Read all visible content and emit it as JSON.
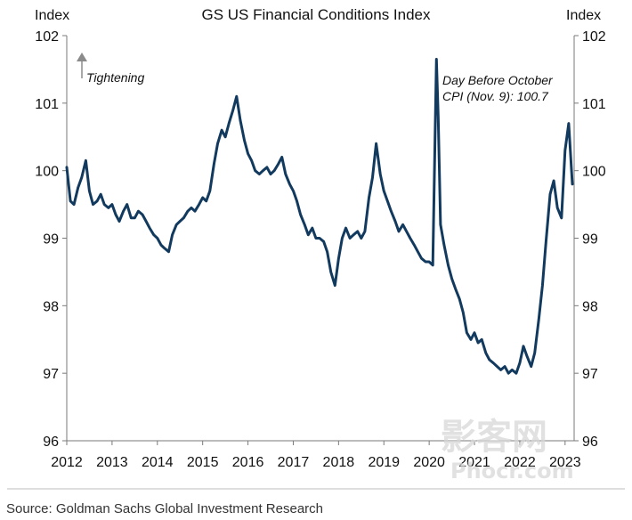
{
  "chart_data": {
    "type": "line",
    "title": "GS US Financial Conditions Index",
    "y_left_label": "Index",
    "y_right_label": "Index",
    "ylim": [
      96,
      102
    ],
    "y_ticks": [
      "96",
      "97",
      "98",
      "99",
      "100",
      "101",
      "102"
    ],
    "x_ticks": [
      "2012",
      "2013",
      "2014",
      "2015",
      "2016",
      "2017",
      "2018",
      "2019",
      "2020",
      "2021",
      "2022",
      "2023"
    ],
    "series": [
      {
        "color": "#123a5e",
        "x": [
          2012.0,
          2012.08,
          2012.16,
          2012.25,
          2012.33,
          2012.42,
          2012.5,
          2012.58,
          2012.67,
          2012.75,
          2012.83,
          2012.92,
          2013.0,
          2013.08,
          2013.16,
          2013.25,
          2013.33,
          2013.42,
          2013.5,
          2013.58,
          2013.67,
          2013.75,
          2013.83,
          2013.92,
          2014.0,
          2014.08,
          2014.16,
          2014.25,
          2014.33,
          2014.42,
          2014.5,
          2014.58,
          2014.67,
          2014.75,
          2014.83,
          2014.92,
          2015.0,
          2015.08,
          2015.16,
          2015.25,
          2015.33,
          2015.42,
          2015.5,
          2015.58,
          2015.67,
          2015.75,
          2015.83,
          2015.92,
          2016.0,
          2016.08,
          2016.16,
          2016.25,
          2016.33,
          2016.42,
          2016.5,
          2016.58,
          2016.67,
          2016.75,
          2016.83,
          2016.92,
          2017.0,
          2017.08,
          2017.16,
          2017.25,
          2017.33,
          2017.42,
          2017.5,
          2017.58,
          2017.67,
          2017.75,
          2017.83,
          2017.92,
          2018.0,
          2018.08,
          2018.16,
          2018.25,
          2018.33,
          2018.42,
          2018.5,
          2018.58,
          2018.67,
          2018.75,
          2018.83,
          2018.92,
          2019.0,
          2019.08,
          2019.16,
          2019.25,
          2019.33,
          2019.42,
          2019.5,
          2019.58,
          2019.67,
          2019.75,
          2019.83,
          2019.92,
          2020.0,
          2020.08,
          2020.16,
          2020.2,
          2020.25,
          2020.33,
          2020.42,
          2020.5,
          2020.58,
          2020.67,
          2020.75,
          2020.83,
          2020.92,
          2021.0,
          2021.08,
          2021.16,
          2021.25,
          2021.33,
          2021.42,
          2021.5,
          2021.58,
          2021.67,
          2021.75,
          2021.83,
          2021.92,
          2022.0,
          2022.08,
          2022.16,
          2022.25,
          2022.33,
          2022.42,
          2022.5,
          2022.58,
          2022.67,
          2022.75,
          2022.83,
          2022.92,
          2023.0,
          2023.08,
          2023.16
        ],
        "values": [
          100.05,
          99.55,
          99.5,
          99.75,
          99.9,
          100.15,
          99.7,
          99.5,
          99.55,
          99.65,
          99.5,
          99.45,
          99.5,
          99.35,
          99.25,
          99.4,
          99.5,
          99.3,
          99.3,
          99.4,
          99.35,
          99.25,
          99.15,
          99.05,
          99.0,
          98.9,
          98.85,
          98.8,
          99.05,
          99.2,
          99.25,
          99.3,
          99.4,
          99.45,
          99.4,
          99.5,
          99.6,
          99.55,
          99.7,
          100.1,
          100.4,
          100.6,
          100.5,
          100.7,
          100.9,
          101.1,
          100.75,
          100.45,
          100.25,
          100.15,
          100.0,
          99.95,
          100.0,
          100.05,
          99.95,
          100.0,
          100.1,
          100.2,
          99.95,
          99.8,
          99.7,
          99.55,
          99.35,
          99.2,
          99.05,
          99.15,
          99.0,
          99.0,
          98.95,
          98.8,
          98.5,
          98.3,
          98.7,
          99.0,
          99.15,
          99.0,
          99.05,
          99.1,
          99.0,
          99.1,
          99.6,
          99.9,
          100.4,
          99.95,
          99.7,
          99.55,
          99.4,
          99.25,
          99.1,
          99.2,
          99.1,
          99.0,
          98.9,
          98.8,
          98.7,
          98.65,
          98.65,
          98.6,
          101.65,
          100.8,
          99.2,
          98.9,
          98.6,
          98.4,
          98.25,
          98.1,
          97.9,
          97.6,
          97.5,
          97.6,
          97.45,
          97.5,
          97.3,
          97.2,
          97.15,
          97.1,
          97.05,
          97.1,
          97.0,
          97.05,
          97.0,
          97.15,
          97.4,
          97.25,
          97.1,
          97.3,
          97.8,
          98.3,
          98.95,
          99.65,
          99.85,
          99.45,
          99.3,
          100.3,
          100.7,
          99.8
        ]
      }
    ],
    "annotations": [
      "Day Before October",
      "CPI (Nov. 9): 100.7",
      "Tightening"
    ],
    "grid": false,
    "legend": "none"
  },
  "source": "Source: Goldman Sachs Global Investment Research",
  "watermark": {
    "cn": "影客网",
    "latin": "Phocr.com"
  },
  "colors": {
    "line": "#123a5e",
    "axis": "#7a7a7a",
    "arrow": "#8b8b8b",
    "text": "#111111"
  }
}
